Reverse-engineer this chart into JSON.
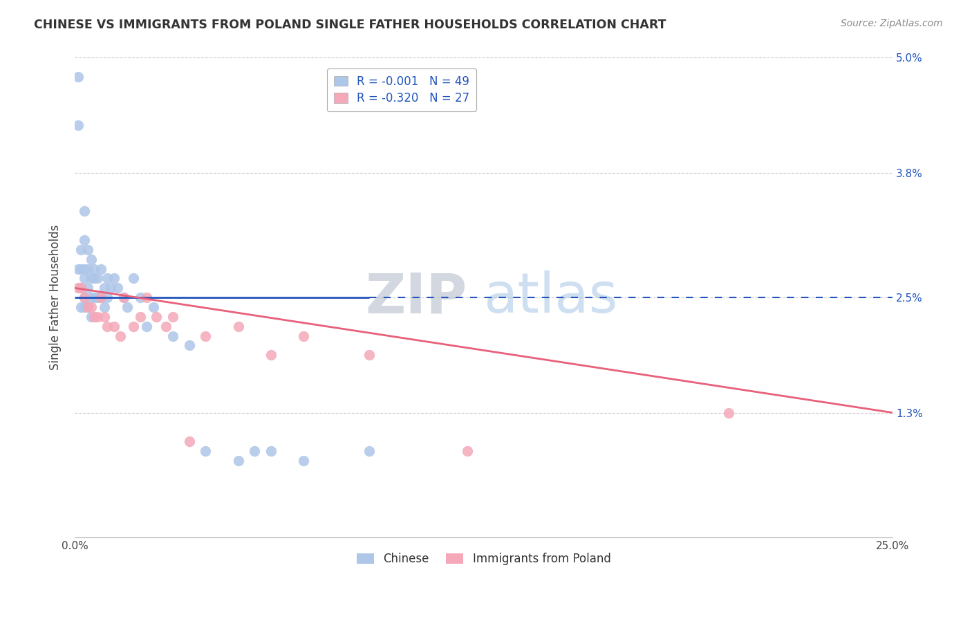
{
  "title": "CHINESE VS IMMIGRANTS FROM POLAND SINGLE FATHER HOUSEHOLDS CORRELATION CHART",
  "source": "Source: ZipAtlas.com",
  "ylabel": "Single Father Households",
  "xlabel": "",
  "xlim": [
    0.0,
    0.25
  ],
  "ylim": [
    0.0,
    0.05
  ],
  "blue_R": -0.001,
  "blue_N": 49,
  "pink_R": -0.32,
  "pink_N": 27,
  "chinese_color": "#aec6e8",
  "poland_color": "#f4a8b8",
  "blue_line_color": "#2255bb",
  "pink_line_color": "#e8607a",
  "right_tick_color": "#2255bb",
  "watermark_color": "#c8d8ee",
  "grid_color": "#cccccc",
  "chinese_x": [
    0.001,
    0.001,
    0.001,
    0.002,
    0.002,
    0.002,
    0.002,
    0.003,
    0.003,
    0.003,
    0.003,
    0.003,
    0.003,
    0.004,
    0.004,
    0.004,
    0.004,
    0.005,
    0.005,
    0.005,
    0.005,
    0.006,
    0.006,
    0.006,
    0.007,
    0.007,
    0.008,
    0.008,
    0.009,
    0.009,
    0.01,
    0.01,
    0.011,
    0.012,
    0.013,
    0.015,
    0.016,
    0.018,
    0.02,
    0.022,
    0.024,
    0.03,
    0.035,
    0.04,
    0.05,
    0.055,
    0.06,
    0.07,
    0.09
  ],
  "chinese_y": [
    0.048,
    0.043,
    0.028,
    0.03,
    0.028,
    0.026,
    0.024,
    0.034,
    0.031,
    0.028,
    0.027,
    0.025,
    0.024,
    0.03,
    0.028,
    0.026,
    0.024,
    0.029,
    0.027,
    0.025,
    0.023,
    0.028,
    0.027,
    0.025,
    0.027,
    0.025,
    0.028,
    0.025,
    0.026,
    0.024,
    0.027,
    0.025,
    0.026,
    0.027,
    0.026,
    0.025,
    0.024,
    0.027,
    0.025,
    0.022,
    0.024,
    0.021,
    0.02,
    0.009,
    0.008,
    0.009,
    0.009,
    0.008,
    0.009
  ],
  "poland_x": [
    0.001,
    0.002,
    0.003,
    0.004,
    0.005,
    0.006,
    0.007,
    0.008,
    0.009,
    0.01,
    0.012,
    0.014,
    0.015,
    0.018,
    0.02,
    0.022,
    0.025,
    0.028,
    0.03,
    0.035,
    0.04,
    0.05,
    0.06,
    0.07,
    0.09,
    0.12,
    0.2
  ],
  "poland_y": [
    0.026,
    0.026,
    0.025,
    0.024,
    0.024,
    0.023,
    0.023,
    0.025,
    0.023,
    0.022,
    0.022,
    0.021,
    0.025,
    0.022,
    0.023,
    0.025,
    0.023,
    0.022,
    0.023,
    0.01,
    0.021,
    0.022,
    0.019,
    0.021,
    0.019,
    0.009,
    0.013
  ]
}
